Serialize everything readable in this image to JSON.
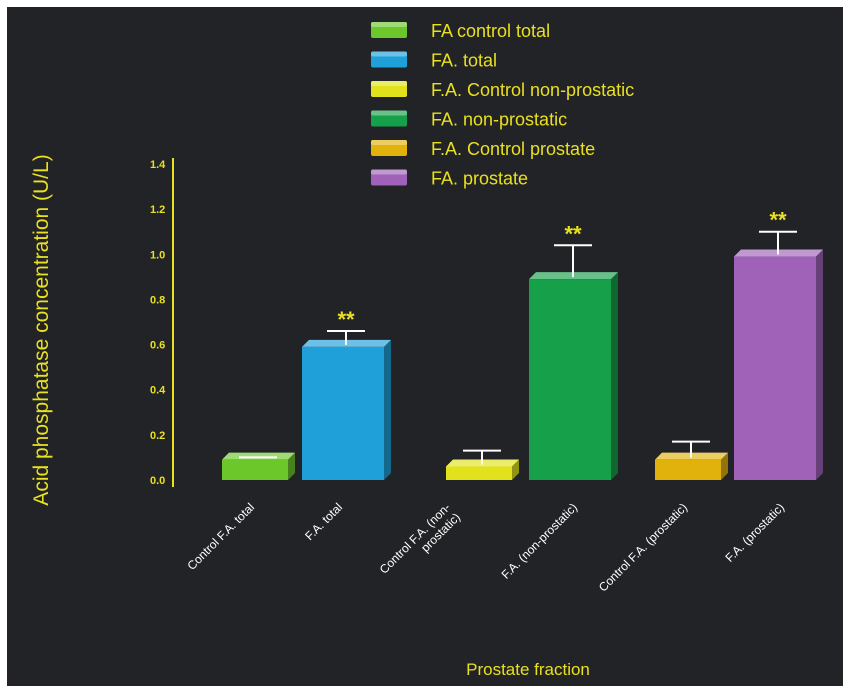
{
  "chart_data": {
    "type": "bar",
    "title": "",
    "xlabel": "Prostate fraction",
    "ylabel": "Acid phosphatase concentration (U/L)",
    "ylim": [
      0,
      1.4
    ],
    "yticks": [
      "0.0",
      "0.2",
      "0.4",
      "0.6",
      "0.8",
      "1.0",
      "1.2",
      "1.4"
    ],
    "grid": false,
    "legend_position": "top-center",
    "categories": [
      "Control F.A. total",
      "F.A. total",
      "Control F.A. (non-prostatic)",
      "F.A. (non-prostatic)",
      "Control F.A. (prostatic)",
      "F.A. (prostatic)"
    ],
    "series": [
      {
        "name": "FA control total",
        "value": 0.09,
        "error": 0.01,
        "color": "#6cc72a",
        "sig": ""
      },
      {
        "name": "FA. total",
        "value": 0.59,
        "error": 0.07,
        "color": "#1fa0d8",
        "sig": "**"
      },
      {
        "name": "F.A. Control non-prostatic",
        "value": 0.06,
        "error": 0.07,
        "color": "#e2e21c",
        "sig": ""
      },
      {
        "name": "FA. non-prostatic",
        "value": 0.89,
        "error": 0.15,
        "color": "#17a04a",
        "sig": "**"
      },
      {
        "name": "F.A. Control prostate",
        "value": 0.09,
        "error": 0.08,
        "color": "#e1b20c",
        "sig": ""
      },
      {
        "name": "FA. prostate",
        "value": 0.99,
        "error": 0.11,
        "color": "#a062b8",
        "sig": "**"
      }
    ]
  }
}
